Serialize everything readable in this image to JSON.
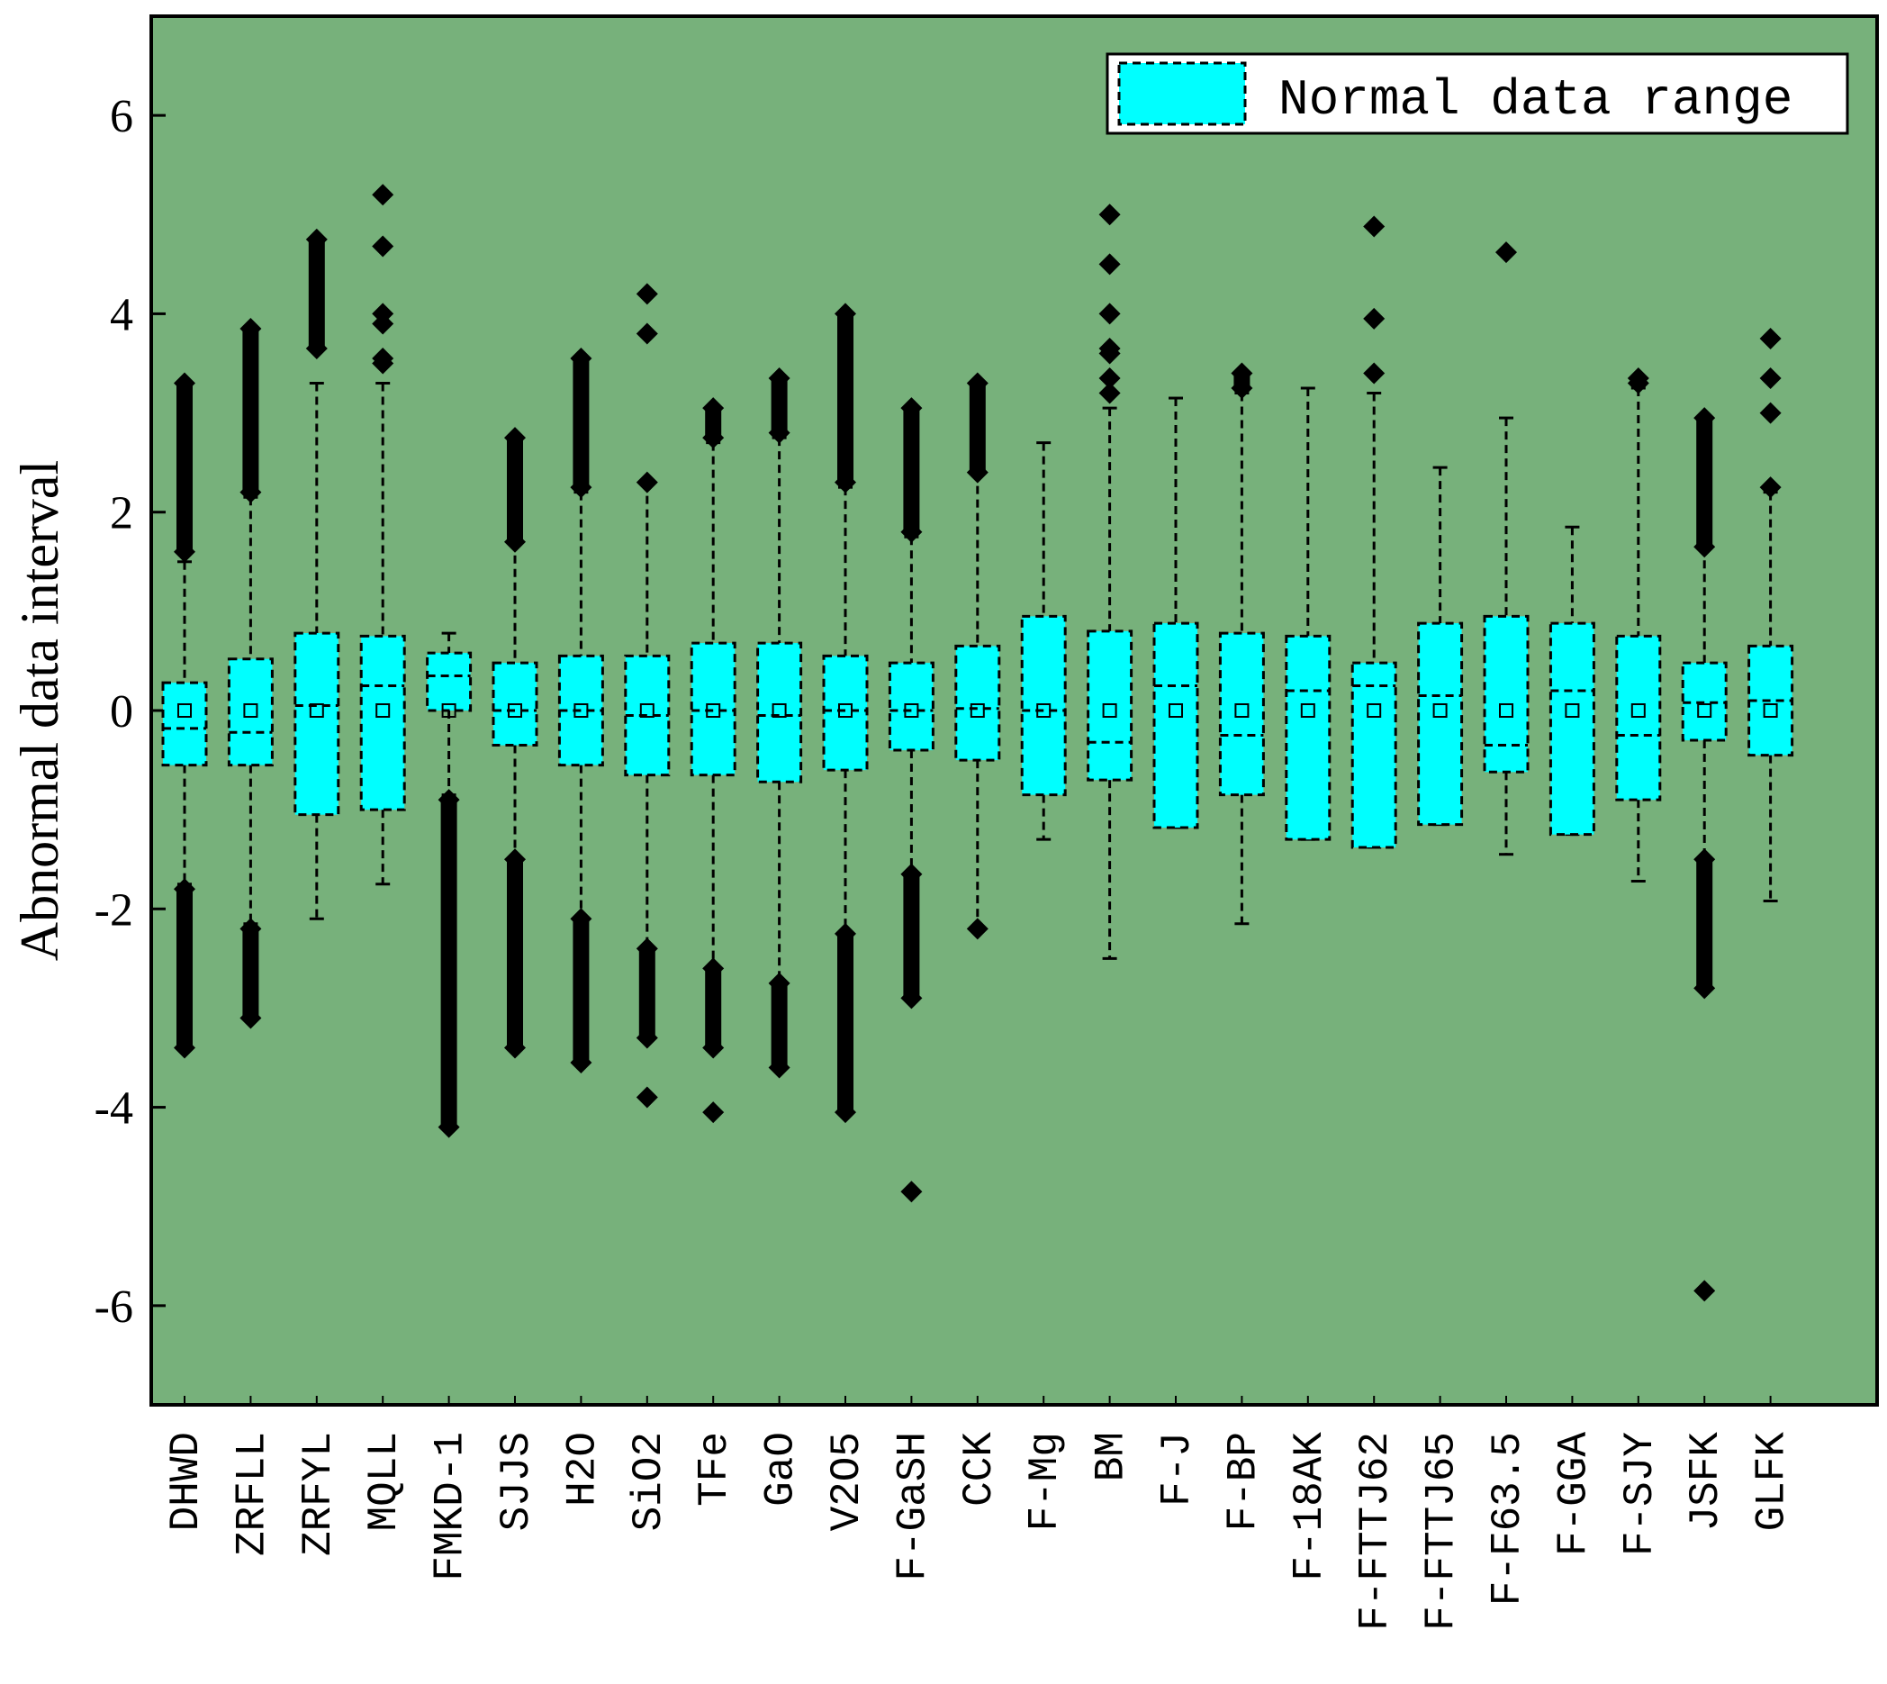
{
  "colors": {
    "plot_background": "#77b17b",
    "box_fill": "#00ffff",
    "outline": "#000000"
  },
  "chart_data": {
    "type": "box",
    "ylabel": "Abnormal data interval",
    "xlabel": "",
    "ylim": [
      -7,
      7
    ],
    "yticks": [
      -6,
      -4,
      -2,
      0,
      2,
      4,
      6
    ],
    "ytick_labels": [
      "-6",
      "-4",
      "-2",
      "0",
      "2",
      "4",
      "6"
    ],
    "legend": {
      "label": "Normal data range",
      "position": "top-right"
    },
    "categories": [
      "DHWD",
      "ZRFLL",
      "ZRFYL",
      "MQLL",
      "FMKD-1",
      "SJJS",
      "H2O",
      "SiO2",
      "TFe",
      "GaO",
      "V2O5",
      "F-GaSH",
      "CCK",
      "F-Mg",
      "BM",
      "F-J",
      "F-BP",
      "F-18AK",
      "F-FTTJ62",
      "F-FTTJ65",
      "F-F63.5",
      "F-GGA",
      "F-SJY",
      "JSFK",
      "GLFK"
    ],
    "series": [
      {
        "name": "DHWD",
        "q1": -0.55,
        "median": -0.18,
        "q3": 0.28,
        "mean": 0,
        "whisker_low": -1.75,
        "whisker_high": 1.5,
        "outliers_low": [
          -1.8,
          -3.4
        ],
        "outliers_high": [
          1.6,
          3.3
        ]
      },
      {
        "name": "ZRFLL",
        "q1": -0.55,
        "median": -0.22,
        "q3": 0.52,
        "mean": 0,
        "whisker_low": -2.15,
        "whisker_high": 2.15,
        "outliers_low": [
          -2.2,
          -3.1
        ],
        "outliers_high": [
          2.2,
          3.85
        ]
      },
      {
        "name": "ZRFYL",
        "q1": -1.05,
        "median": 0.05,
        "q3": 0.78,
        "mean": 0,
        "whisker_low": -2.1,
        "whisker_high": 3.3,
        "outliers_low": [],
        "outliers_high": [
          3.65,
          4.75
        ]
      },
      {
        "name": "MQLL",
        "q1": -1.0,
        "median": 0.25,
        "q3": 0.75,
        "mean": 0,
        "whisker_low": -1.75,
        "whisker_high": 3.3,
        "outliers_low": [],
        "outliers_high": [
          3.5,
          3.55,
          3.9,
          4.0,
          4.68,
          5.2
        ]
      },
      {
        "name": "FMKD-1",
        "q1": 0.0,
        "median": 0.35,
        "q3": 0.58,
        "mean": 0,
        "whisker_low": -0.85,
        "whisker_high": 0.78,
        "outliers_low": [
          -0.9,
          -4.2
        ],
        "outliers_high": []
      },
      {
        "name": "SJJS",
        "q1": -0.35,
        "median": 0.0,
        "q3": 0.48,
        "mean": 0,
        "whisker_low": -1.55,
        "whisker_high": 1.7,
        "outliers_low": [
          -1.5,
          -3.4
        ],
        "outliers_high": [
          1.7,
          2.75
        ]
      },
      {
        "name": "H2O",
        "q1": -0.55,
        "median": 0.0,
        "q3": 0.55,
        "mean": 0,
        "whisker_low": -2.1,
        "whisker_high": 2.2,
        "outliers_low": [
          -2.1,
          -3.55
        ],
        "outliers_high": [
          2.25,
          3.55
        ]
      },
      {
        "name": "SiO2",
        "q1": -0.65,
        "median": -0.05,
        "q3": 0.55,
        "mean": 0,
        "whisker_low": -2.45,
        "whisker_high": 2.3,
        "outliers_low": [
          -2.4,
          -3.3,
          -3.9
        ],
        "outliers_high": [
          2.3,
          3.8,
          4.2
        ]
      },
      {
        "name": "TFe",
        "q1": -0.65,
        "median": 0.0,
        "q3": 0.68,
        "mean": 0,
        "whisker_low": -2.65,
        "whisker_high": 2.7,
        "outliers_low": [
          -2.6,
          -3.4,
          -4.05
        ],
        "outliers_high": [
          2.75,
          3.05
        ]
      },
      {
        "name": "GaO",
        "q1": -0.72,
        "median": -0.05,
        "q3": 0.68,
        "mean": 0,
        "whisker_low": -2.75,
        "whisker_high": 2.75,
        "outliers_low": [
          -2.75,
          -3.6
        ],
        "outliers_high": [
          2.8,
          3.35
        ]
      },
      {
        "name": "V2O5",
        "q1": -0.6,
        "median": 0.0,
        "q3": 0.55,
        "mean": 0,
        "whisker_low": -2.25,
        "whisker_high": 2.25,
        "outliers_low": [
          -2.25,
          -4.05
        ],
        "outliers_high": [
          2.3,
          4.0
        ]
      },
      {
        "name": "F-GaSH",
        "q1": -0.4,
        "median": 0.0,
        "q3": 0.48,
        "mean": 0,
        "whisker_low": -1.65,
        "whisker_high": 1.75,
        "outliers_low": [
          -1.65,
          -2.9,
          -4.85
        ],
        "outliers_high": [
          1.8,
          3.05
        ]
      },
      {
        "name": "CCK",
        "q1": -0.5,
        "median": 0.02,
        "q3": 0.65,
        "mean": 0,
        "whisker_low": -2.2,
        "whisker_high": 2.4,
        "outliers_low": [
          -2.2
        ],
        "outliers_high": [
          2.4,
          3.3
        ]
      },
      {
        "name": "F-Mg",
        "q1": -0.85,
        "median": 0.0,
        "q3": 0.95,
        "mean": 0,
        "whisker_low": -1.3,
        "whisker_high": 2.7,
        "outliers_low": [],
        "outliers_high": []
      },
      {
        "name": "BM",
        "q1": -0.7,
        "median": -0.32,
        "q3": 0.8,
        "mean": 0,
        "whisker_low": -2.5,
        "whisker_high": 3.05,
        "outliers_low": [],
        "outliers_high": [
          3.2,
          3.35,
          3.6,
          3.65,
          4.0,
          4.5,
          5.0
        ]
      },
      {
        "name": "F-J",
        "q1": -1.18,
        "median": 0.25,
        "q3": 0.88,
        "mean": 0,
        "whisker_low": -1.18,
        "whisker_high": 3.15,
        "outliers_low": [],
        "outliers_high": []
      },
      {
        "name": "F-BP",
        "q1": -0.85,
        "median": -0.25,
        "q3": 0.78,
        "mean": 0,
        "whisker_low": -2.15,
        "whisker_high": 3.2,
        "outliers_low": [],
        "outliers_high": [
          3.25,
          3.4
        ]
      },
      {
        "name": "F-18AK",
        "q1": -1.3,
        "median": 0.2,
        "q3": 0.75,
        "mean": 0,
        "whisker_low": -1.3,
        "whisker_high": 3.25,
        "outliers_low": [],
        "outliers_high": []
      },
      {
        "name": "F-FTTJ62",
        "q1": -1.38,
        "median": 0.25,
        "q3": 0.48,
        "mean": 0,
        "whisker_low": -1.38,
        "whisker_high": 3.2,
        "outliers_low": [],
        "outliers_high": [
          3.4,
          3.95,
          4.88
        ]
      },
      {
        "name": "F-FTTJ65",
        "q1": -1.15,
        "median": 0.15,
        "q3": 0.88,
        "mean": 0,
        "whisker_low": -1.15,
        "whisker_high": 2.45,
        "outliers_low": [],
        "outliers_high": []
      },
      {
        "name": "F-F63.5",
        "q1": -0.62,
        "median": -0.35,
        "q3": 0.95,
        "mean": 0,
        "whisker_low": -1.45,
        "whisker_high": 2.95,
        "outliers_low": [],
        "outliers_high": [
          4.62
        ]
      },
      {
        "name": "F-GGA",
        "q1": -1.25,
        "median": 0.2,
        "q3": 0.88,
        "mean": 0,
        "whisker_low": -1.25,
        "whisker_high": 1.85,
        "outliers_low": [],
        "outliers_high": []
      },
      {
        "name": "F-SJY",
        "q1": -0.9,
        "median": -0.25,
        "q3": 0.75,
        "mean": 0,
        "whisker_low": -1.72,
        "whisker_high": 3.25,
        "outliers_low": [],
        "outliers_high": [
          3.3,
          3.35
        ]
      },
      {
        "name": "JSFK",
        "q1": -0.3,
        "median": 0.08,
        "q3": 0.48,
        "mean": 0,
        "whisker_low": -1.5,
        "whisker_high": 1.65,
        "outliers_low": [
          -1.5,
          -2.8,
          -5.85
        ],
        "outliers_high": [
          1.65,
          2.95
        ]
      },
      {
        "name": "GLFK",
        "q1": -0.45,
        "median": 0.1,
        "q3": 0.65,
        "mean": 0,
        "whisker_low": -1.92,
        "whisker_high": 2.2,
        "outliers_low": [],
        "outliers_high": [
          2.25,
          3.0,
          3.35,
          3.75
        ]
      }
    ]
  }
}
